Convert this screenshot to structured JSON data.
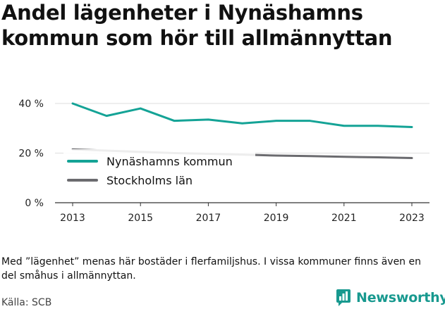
{
  "title": "Andel lägenheter i Nynäshamns kommun som hör till allmännyttan",
  "note": "Med ”lägenhet” menas här bostäder i flerfamiljshus. I vissa kommuner finns även en del småhus i allmännyttan.",
  "source": "Källa: SCB",
  "brand": "Newsworthy",
  "colors": {
    "teal": "#14a396",
    "gray": "#6b6b6f",
    "grid": "#dddddd",
    "axis": "#333333",
    "brand": "#18998f"
  },
  "chart_data": {
    "type": "line",
    "x": [
      2013,
      2014,
      2015,
      2016,
      2017,
      2018,
      2019,
      2020,
      2021,
      2022,
      2023
    ],
    "series": [
      {
        "name": "Nynäshamns kommun",
        "color": "#14a396",
        "values": [
          40.0,
          35.0,
          38.0,
          33.0,
          33.5,
          32.0,
          33.0,
          33.0,
          31.0,
          31.0,
          30.5
        ]
      },
      {
        "name": "Stockholms län",
        "color": "#6b6b6f",
        "values": [
          21.5,
          21.0,
          20.5,
          20.0,
          19.7,
          19.4,
          19.0,
          18.8,
          18.5,
          18.3,
          18.0
        ]
      }
    ],
    "xticks": [
      "2013",
      "2015",
      "2017",
      "2019",
      "2021",
      "2023"
    ],
    "yticks": [
      {
        "value": 0,
        "label": "0 %"
      },
      {
        "value": 20,
        "label": "20 %"
      },
      {
        "value": 40,
        "label": "40 %"
      }
    ],
    "ylim": [
      0,
      40
    ],
    "xlim": [
      2013,
      2023
    ],
    "grid": true,
    "legend": "inside-left"
  }
}
